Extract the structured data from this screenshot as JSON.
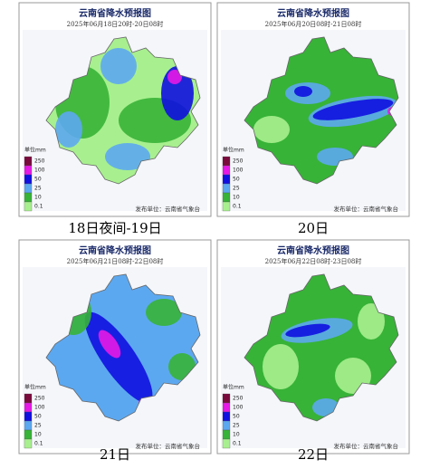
{
  "title": "云南省降水预报图",
  "publisher": "发布单位：云南省气象台",
  "legend": {
    "unit": "单位mm",
    "values": [
      250,
      100,
      50,
      25,
      10,
      0.1
    ],
    "colors": [
      "#7a0a3c",
      "#e619e6",
      "#1010e0",
      "#5ca8f0",
      "#37b337",
      "#a8f08f"
    ]
  },
  "panels": [
    {
      "subtitle": "2025年06月18日20时-20日08时",
      "caption": "18日夜间-19日"
    },
    {
      "subtitle": "2025年06月20日08时-21日08时",
      "caption": "20日"
    },
    {
      "subtitle": "2025年06月21日08时-22日08时",
      "caption": "21日"
    },
    {
      "subtitle": "2025年06月22日08时-23日08时",
      "caption": "22日"
    }
  ]
}
